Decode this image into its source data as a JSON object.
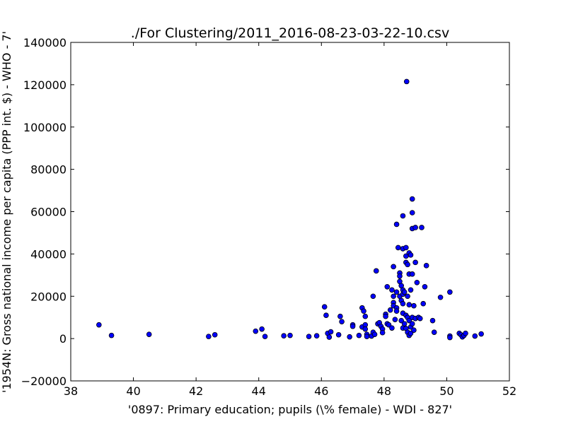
{
  "chart_data": {
    "type": "scatter",
    "title": "./For Clustering/2011_2016-08-23-03-22-10.csv",
    "xlabel": "'0897: Primary education; pupils  (\\% female) - WDI - 827'",
    "ylabel": "'1954N: Gross national income per capita (PPP int. $) - WHO - 7'",
    "xlim": [
      38,
      52
    ],
    "ylim": [
      -20000,
      140000
    ],
    "xticks": [
      38,
      40,
      42,
      44,
      46,
      48,
      50,
      52
    ],
    "yticks": [
      -20000,
      0,
      20000,
      40000,
      60000,
      80000,
      100000,
      120000,
      140000
    ],
    "grid": false,
    "colors": {
      "marker_fill": "#0000ff",
      "marker_edge": "#000000"
    },
    "points": [
      [
        38.9,
        6500
      ],
      [
        39.3,
        1500
      ],
      [
        40.5,
        2000
      ],
      [
        42.4,
        1000
      ],
      [
        42.6,
        1800
      ],
      [
        43.9,
        3500
      ],
      [
        44.1,
        4500
      ],
      [
        44.2,
        1000
      ],
      [
        44.8,
        1300
      ],
      [
        45.0,
        1500
      ],
      [
        45.6,
        1000
      ],
      [
        45.85,
        1300
      ],
      [
        46.1,
        15000
      ],
      [
        46.15,
        11000
      ],
      [
        46.2,
        2500
      ],
      [
        46.25,
        700
      ],
      [
        46.3,
        3200
      ],
      [
        46.55,
        1800
      ],
      [
        46.6,
        10500
      ],
      [
        46.65,
        8000
      ],
      [
        46.9,
        800
      ],
      [
        47.0,
        6500
      ],
      [
        47.0,
        5800
      ],
      [
        47.2,
        1500
      ],
      [
        47.3,
        14500
      ],
      [
        47.35,
        13000
      ],
      [
        47.3,
        5500
      ],
      [
        47.4,
        10500
      ],
      [
        47.4,
        6500
      ],
      [
        47.4,
        4500
      ],
      [
        47.45,
        2000
      ],
      [
        47.45,
        1000
      ],
      [
        47.6,
        1200
      ],
      [
        47.65,
        3000
      ],
      [
        47.7,
        2000
      ],
      [
        47.65,
        20000
      ],
      [
        47.75,
        32000
      ],
      [
        47.8,
        7000
      ],
      [
        47.85,
        7500
      ],
      [
        47.9,
        5800
      ],
      [
        47.95,
        4500
      ],
      [
        47.95,
        2800
      ],
      [
        48.05,
        11500
      ],
      [
        48.05,
        10500
      ],
      [
        48.1,
        24500
      ],
      [
        48.1,
        7000
      ],
      [
        48.15,
        6500
      ],
      [
        48.2,
        13500
      ],
      [
        48.25,
        5000
      ],
      [
        48.25,
        23000
      ],
      [
        48.3,
        34000
      ],
      [
        48.3,
        20000
      ],
      [
        48.3,
        17000
      ],
      [
        48.3,
        15500
      ],
      [
        48.35,
        9000
      ],
      [
        48.4,
        54000
      ],
      [
        48.4,
        22000
      ],
      [
        48.4,
        14500
      ],
      [
        48.4,
        13000
      ],
      [
        48.45,
        43000
      ],
      [
        48.5,
        31000
      ],
      [
        48.5,
        29500
      ],
      [
        48.5,
        27000
      ],
      [
        48.55,
        25000
      ],
      [
        48.5,
        20000
      ],
      [
        48.55,
        18000
      ],
      [
        48.55,
        8500
      ],
      [
        48.6,
        58000
      ],
      [
        48.6,
        42500
      ],
      [
        48.6,
        23000
      ],
      [
        48.6,
        21000
      ],
      [
        48.6,
        16500
      ],
      [
        48.6,
        12000
      ],
      [
        48.6,
        5000
      ],
      [
        48.65,
        22000
      ],
      [
        48.65,
        7000
      ],
      [
        48.7,
        43000
      ],
      [
        48.7,
        39000
      ],
      [
        48.7,
        36000
      ],
      [
        48.7,
        11000
      ],
      [
        48.7,
        4800
      ],
      [
        48.72,
        121500
      ],
      [
        48.75,
        35000
      ],
      [
        48.75,
        20000
      ],
      [
        48.75,
        10000
      ],
      [
        48.75,
        3000
      ],
      [
        48.8,
        40500
      ],
      [
        48.8,
        30500
      ],
      [
        48.8,
        16000
      ],
      [
        48.8,
        8500
      ],
      [
        48.8,
        1500
      ],
      [
        48.85,
        39500
      ],
      [
        48.85,
        23000
      ],
      [
        48.85,
        5500
      ],
      [
        48.85,
        2500
      ],
      [
        48.9,
        66000
      ],
      [
        48.9,
        59500
      ],
      [
        48.9,
        52000
      ],
      [
        48.9,
        30500
      ],
      [
        48.9,
        10000
      ],
      [
        48.9,
        7000
      ],
      [
        48.95,
        15500
      ],
      [
        48.95,
        4000
      ],
      [
        49.0,
        52500
      ],
      [
        49.0,
        36000
      ],
      [
        49.0,
        9500
      ],
      [
        49.05,
        26500
      ],
      [
        49.1,
        10000
      ],
      [
        49.15,
        9500
      ],
      [
        49.2,
        52500
      ],
      [
        49.25,
        16500
      ],
      [
        49.3,
        24500
      ],
      [
        49.35,
        34500
      ],
      [
        49.55,
        8500
      ],
      [
        49.6,
        3000
      ],
      [
        49.8,
        19500
      ],
      [
        50.1,
        22000
      ],
      [
        50.1,
        1200
      ],
      [
        50.1,
        500
      ],
      [
        50.4,
        2500
      ],
      [
        50.45,
        1800
      ],
      [
        50.5,
        800
      ],
      [
        50.55,
        1500
      ],
      [
        50.6,
        2500
      ],
      [
        50.9,
        1200
      ],
      [
        51.1,
        2200
      ]
    ]
  }
}
